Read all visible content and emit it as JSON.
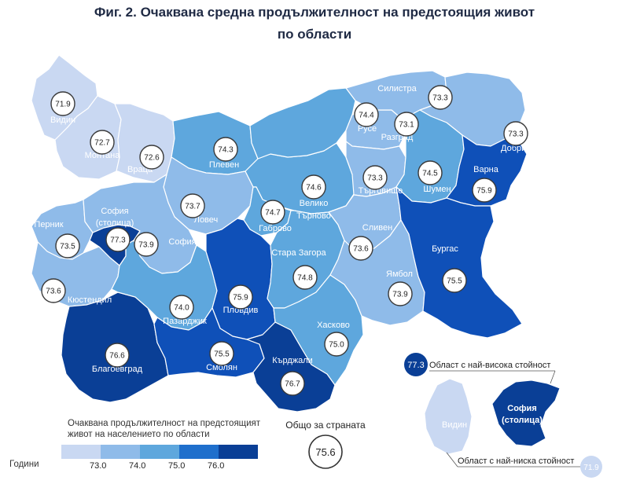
{
  "title_line1": "Фиг. 2. Очаквана средна продължителност  на предстоящия живот",
  "title_line2": "по области",
  "regions": [
    {
      "id": "vidin",
      "name": "Видин",
      "value": "71.9",
      "color": "#c9d8f2"
    },
    {
      "id": "montana",
      "name": "Монтана",
      "value": "72.7",
      "color": "#c9d8f2"
    },
    {
      "id": "vratsa",
      "name": "Враца",
      "value": "72.6",
      "color": "#c9d8f2"
    },
    {
      "id": "pleven",
      "name": "Плевен",
      "value": "74.3",
      "color": "#5ea7dd"
    },
    {
      "id": "lovech",
      "name": "Ловеч",
      "value": "73.7",
      "color": "#8fbbe9"
    },
    {
      "id": "veliko-tarnovo",
      "name": "Велико Търново",
      "value": "74.6",
      "color": "#5ea7dd"
    },
    {
      "id": "gabrovo",
      "name": "Габрово",
      "value": "74.7",
      "color": "#5ea7dd"
    },
    {
      "id": "ruse",
      "name": "Русе",
      "value": "74.4",
      "color": "#5ea7dd"
    },
    {
      "id": "razgrad",
      "name": "Разград",
      "value": "73.1",
      "color": "#8fbbe9"
    },
    {
      "id": "silistra",
      "name": "Силистра",
      "value": "73.3",
      "color": "#8fbbe9"
    },
    {
      "id": "dobrich",
      "name": "Добрич",
      "value": "73.3",
      "color": "#8fbbe9"
    },
    {
      "id": "targovishte",
      "name": "Търговище",
      "value": "73.3",
      "color": "#8fbbe9"
    },
    {
      "id": "shumen",
      "name": "Шумен",
      "value": "74.5",
      "color": "#5ea7dd"
    },
    {
      "id": "varna",
      "name": "Варна",
      "value": "75.9",
      "color": "#0f50b8"
    },
    {
      "id": "sofia-stolitsa",
      "name": "София (столица)",
      "value": "77.3",
      "color": "#0a3f96"
    },
    {
      "id": "pernik",
      "name": "Перник",
      "value": "73.5",
      "color": "#8fbbe9"
    },
    {
      "id": "sofia",
      "name": "София",
      "value": "73.9",
      "color": "#8fbbe9"
    },
    {
      "id": "kyustendil",
      "name": "Кюстендил",
      "value": "73.6",
      "color": "#8fbbe9"
    },
    {
      "id": "blagoevgrad",
      "name": "Благоевград",
      "value": "76.6",
      "color": "#0a3f96"
    },
    {
      "id": "pazardzhik",
      "name": "Пазарджик",
      "value": "74.0",
      "color": "#5ea7dd"
    },
    {
      "id": "plovdiv",
      "name": "Пловдив",
      "value": "75.9",
      "color": "#0f50b8"
    },
    {
      "id": "smolyan",
      "name": "Смолян",
      "value": "75.5",
      "color": "#0f50b8"
    },
    {
      "id": "kardzhali",
      "name": "Кърджали",
      "value": "76.7",
      "color": "#0a3f96"
    },
    {
      "id": "stara-zagora",
      "name": "Стара Загора",
      "value": "74.8",
      "color": "#5ea7dd"
    },
    {
      "id": "haskovo",
      "name": "Хасково",
      "value": "75.0",
      "color": "#5ea7dd"
    },
    {
      "id": "sliven",
      "name": "Сливен",
      "value": "73.6",
      "color": "#8fbbe9"
    },
    {
      "id": "yambol",
      "name": "Ямбол",
      "value": "73.9",
      "color": "#8fbbe9"
    },
    {
      "id": "burgas",
      "name": "Бургас",
      "value": "75.5",
      "color": "#0f50b8"
    }
  ],
  "legend": {
    "title": "Очаквана продължителност на предстоящият живот на населението по области",
    "unit": "Години",
    "ticks": [
      "73.0",
      "74.0",
      "75.0",
      "76.0"
    ],
    "colors": [
      "#c9d8f2",
      "#8fbbe9",
      "#5ea7dd",
      "#1f6fcc",
      "#0a3f96"
    ]
  },
  "country_total": {
    "label": "Общо за страната",
    "value": "75.6"
  },
  "inset": {
    "highest": {
      "label": "Област с най-висока стойност",
      "value": "77.3",
      "name_line1": "София",
      "name_line2": "(столица)",
      "color": "#0a3f96"
    },
    "lowest": {
      "label": "Област с най-ниска стойност",
      "value": "71.9",
      "name": "Видин",
      "color": "#c9d8f2"
    }
  }
}
